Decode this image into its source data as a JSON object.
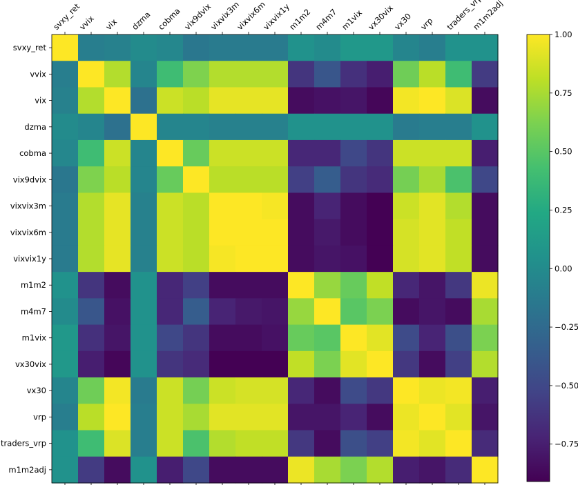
{
  "chart_data": {
    "type": "heatmap",
    "title": "",
    "variables": [
      "svxy_ret",
      "vvix",
      "vix",
      "dzma",
      "cobma",
      "vix9dvix",
      "vixvix3m",
      "vixvix6m",
      "vixvix1y",
      "m1m2",
      "m4m7",
      "m1vix",
      "vx30vix",
      "vx30",
      "vrp",
      "traders_vrp",
      "m1m2adj"
    ],
    "matrix": [
      [
        1.0,
        -0.1,
        -0.08,
        0.0,
        -0.03,
        -0.15,
        -0.12,
        -0.12,
        -0.12,
        0.05,
        0.0,
        0.1,
        0.1,
        -0.05,
        -0.1,
        0.05,
        0.05
      ],
      [
        -0.1,
        1.0,
        0.78,
        -0.05,
        0.4,
        0.63,
        0.78,
        0.78,
        0.78,
        -0.62,
        -0.4,
        -0.65,
        -0.75,
        0.58,
        0.8,
        0.4,
        -0.58
      ],
      [
        -0.08,
        0.78,
        1.0,
        -0.2,
        0.85,
        0.8,
        0.93,
        0.93,
        0.93,
        -0.85,
        -0.82,
        -0.8,
        -0.88,
        0.97,
        1.0,
        0.9,
        -0.85
      ],
      [
        0.0,
        -0.05,
        -0.2,
        1.0,
        -0.05,
        -0.05,
        -0.08,
        -0.08,
        -0.08,
        0.05,
        0.05,
        0.05,
        0.05,
        -0.12,
        -0.1,
        -0.1,
        0.05
      ],
      [
        -0.03,
        0.4,
        0.85,
        -0.05,
        1.0,
        0.55,
        0.85,
        0.85,
        0.85,
        -0.7,
        -0.7,
        -0.5,
        -0.62,
        0.85,
        0.85,
        0.85,
        -0.75
      ],
      [
        -0.15,
        0.63,
        0.8,
        -0.05,
        0.55,
        1.0,
        0.8,
        0.8,
        0.8,
        -0.55,
        -0.35,
        -0.62,
        -0.68,
        0.6,
        0.75,
        0.45,
        -0.5
      ],
      [
        -0.12,
        0.78,
        0.93,
        -0.08,
        0.85,
        0.8,
        1.0,
        1.0,
        0.98,
        -0.85,
        -0.72,
        -0.85,
        -0.95,
        0.85,
        0.92,
        0.78,
        -0.85
      ],
      [
        -0.12,
        0.78,
        0.93,
        -0.08,
        0.85,
        0.8,
        1.0,
        1.0,
        1.0,
        -0.85,
        -0.78,
        -0.85,
        -0.95,
        0.88,
        0.92,
        0.82,
        -0.85
      ],
      [
        -0.12,
        0.78,
        0.93,
        -0.08,
        0.85,
        0.8,
        0.98,
        1.0,
        1.0,
        -0.85,
        -0.8,
        -0.82,
        -0.93,
        0.88,
        0.92,
        0.82,
        -0.85
      ],
      [
        0.05,
        -0.62,
        -0.85,
        0.05,
        -0.7,
        -0.55,
        -0.85,
        -0.85,
        -0.85,
        1.0,
        0.7,
        0.55,
        0.82,
        -0.7,
        -0.8,
        -0.6,
        0.95
      ],
      [
        0.0,
        -0.4,
        -0.82,
        0.05,
        -0.7,
        -0.35,
        -0.72,
        -0.78,
        -0.8,
        0.7,
        1.0,
        0.5,
        0.62,
        -0.85,
        -0.8,
        -0.85,
        0.75
      ],
      [
        0.1,
        -0.65,
        -0.8,
        0.05,
        -0.5,
        -0.62,
        -0.85,
        -0.85,
        -0.82,
        0.55,
        0.5,
        1.0,
        0.92,
        -0.48,
        -0.72,
        -0.45,
        0.62
      ],
      [
        0.1,
        -0.75,
        -0.88,
        0.05,
        -0.62,
        -0.68,
        -0.95,
        -0.95,
        -0.93,
        0.82,
        0.62,
        0.92,
        1.0,
        -0.6,
        -0.85,
        -0.55,
        0.78
      ],
      [
        -0.05,
        0.58,
        0.97,
        -0.12,
        0.85,
        0.6,
        0.85,
        0.88,
        0.88,
        -0.7,
        -0.85,
        -0.48,
        -0.6,
        1.0,
        0.95,
        0.97,
        -0.75
      ],
      [
        -0.1,
        0.8,
        1.0,
        -0.1,
        0.85,
        0.75,
        0.92,
        0.92,
        0.92,
        -0.8,
        -0.8,
        -0.72,
        -0.85,
        0.95,
        1.0,
        0.92,
        -0.8
      ],
      [
        0.05,
        0.4,
        0.9,
        -0.1,
        0.85,
        0.45,
        0.78,
        0.82,
        0.82,
        -0.6,
        -0.85,
        -0.45,
        -0.55,
        0.97,
        0.92,
        1.0,
        -0.68
      ],
      [
        0.05,
        -0.58,
        -0.85,
        0.05,
        -0.75,
        -0.5,
        -0.85,
        -0.85,
        -0.85,
        0.95,
        0.75,
        0.62,
        0.78,
        -0.75,
        -0.8,
        -0.68,
        1.0
      ]
    ],
    "colorbar": {
      "colormap": "viridis",
      "range": [
        -0.91,
        1.0
      ],
      "ticks": [
        1.0,
        0.75,
        0.5,
        0.25,
        0.0,
        -0.25,
        -0.5,
        -0.75
      ],
      "tick_labels": [
        "1.00",
        "0.75",
        "0.50",
        "0.25",
        "0.00",
        "−0.25",
        "−0.50",
        "−0.75"
      ]
    },
    "grid": false,
    "legend": "colorbar-right"
  }
}
